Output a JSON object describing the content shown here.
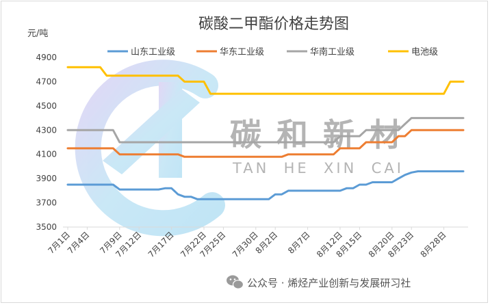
{
  "chart_data": {
    "type": "line",
    "title": "碳酸二甲酯价格走势图",
    "ylabel": "元/吨",
    "ylim": [
      3500,
      4900
    ],
    "yticks": [
      3500,
      3700,
      3900,
      4100,
      4300,
      4500,
      4700,
      4900
    ],
    "grid": false,
    "legend_position": "top",
    "x": [
      "7月1日",
      "7月2日",
      "7月3日",
      "7月4日",
      "7月5日",
      "7月6日",
      "7月7日",
      "7月8日",
      "7月9日",
      "7月10日",
      "7月11日",
      "7月12日",
      "7月13日",
      "7月14日",
      "7月15日",
      "7月16日",
      "7月17日",
      "7月18日",
      "7月19日",
      "7月20日",
      "7月21日",
      "7月22日",
      "7月23日",
      "7月24日",
      "7月25日",
      "7月26日",
      "7月27日",
      "7月28日",
      "7月29日",
      "7月30日",
      "7月31日",
      "8月1日",
      "8月2日",
      "8月3日",
      "8月4日",
      "8月5日",
      "8月6日",
      "8月7日",
      "8月8日",
      "8月9日",
      "8月10日",
      "8月11日",
      "8月12日",
      "8月13日",
      "8月14日",
      "8月15日",
      "8月16日",
      "8月17日",
      "8月18日",
      "8月19日",
      "8月20日",
      "8月21日",
      "8月22日",
      "8月23日",
      "8月24日",
      "8月25日",
      "8月26日",
      "8月27日",
      "8月28日",
      "8月29日",
      "8月30日",
      "8月31日"
    ],
    "xtick_labels": [
      "7月1日",
      "7月4日",
      "7月9日",
      "7月12日",
      "7月17日",
      "7月22日",
      "7月25日",
      "7月30日",
      "8月2日",
      "8月7日",
      "8月12日",
      "8月15日",
      "8月20日",
      "8月23日",
      "8月28日"
    ],
    "series": [
      {
        "name": "山东工业级",
        "color": "#5b9bd5",
        "values": [
          3850,
          3850,
          3850,
          3850,
          3850,
          3850,
          3850,
          3850,
          3810,
          3810,
          3810,
          3810,
          3810,
          3810,
          3810,
          3820,
          3820,
          3770,
          3750,
          3750,
          3730,
          3730,
          3730,
          3730,
          3730,
          3730,
          3730,
          3730,
          3730,
          3730,
          3730,
          3730,
          3770,
          3770,
          3800,
          3800,
          3800,
          3800,
          3800,
          3800,
          3800,
          3800,
          3800,
          3820,
          3820,
          3850,
          3850,
          3870,
          3870,
          3870,
          3870,
          3900,
          3930,
          3950,
          3960,
          3960,
          3960,
          3960,
          3960,
          3960,
          3960,
          3960
        ]
      },
      {
        "name": "华东工业级",
        "color": "#ed7d31",
        "values": [
          4150,
          4150,
          4150,
          4150,
          4150,
          4150,
          4150,
          4150,
          4100,
          4100,
          4100,
          4100,
          4100,
          4100,
          4100,
          4100,
          4100,
          4100,
          4080,
          4080,
          4080,
          4080,
          4080,
          4080,
          4080,
          4080,
          4080,
          4080,
          4080,
          4080,
          4080,
          4080,
          4080,
          4080,
          4100,
          4100,
          4100,
          4100,
          4100,
          4100,
          4100,
          4100,
          4150,
          4150,
          4150,
          4150,
          4200,
          4200,
          4200,
          4200,
          4200,
          4250,
          4250,
          4300,
          4300,
          4300,
          4300,
          4300,
          4300,
          4300,
          4300,
          4300
        ]
      },
      {
        "name": "华南工业级",
        "color": "#a5a5a5",
        "values": [
          4300,
          4300,
          4300,
          4300,
          4300,
          4300,
          4300,
          4300,
          4200,
          4200,
          4200,
          4200,
          4200,
          4200,
          4200,
          4200,
          4200,
          4200,
          4200,
          4200,
          4200,
          4200,
          4200,
          4200,
          4200,
          4200,
          4200,
          4200,
          4200,
          4200,
          4200,
          4200,
          4200,
          4200,
          4200,
          4200,
          4200,
          4200,
          4200,
          4200,
          4200,
          4200,
          4250,
          4250,
          4250,
          4250,
          4300,
          4300,
          4300,
          4300,
          4300,
          4300,
          4350,
          4400,
          4400,
          4400,
          4400,
          4400,
          4400,
          4400,
          4400,
          4400
        ]
      },
      {
        "name": "电池级",
        "color": "#ffc000",
        "values": [
          4820,
          4820,
          4820,
          4820,
          4820,
          4820,
          4750,
          4750,
          4750,
          4750,
          4750,
          4750,
          4750,
          4750,
          4750,
          4750,
          4750,
          4750,
          4700,
          4700,
          4700,
          4700,
          4600,
          4600,
          4600,
          4600,
          4600,
          4600,
          4600,
          4600,
          4600,
          4600,
          4600,
          4600,
          4600,
          4600,
          4600,
          4600,
          4600,
          4600,
          4600,
          4600,
          4600,
          4600,
          4600,
          4600,
          4600,
          4600,
          4600,
          4600,
          4600,
          4600,
          4600,
          4600,
          4600,
          4600,
          4600,
          4600,
          4600,
          4700,
          4700,
          4700
        ]
      }
    ]
  },
  "watermark": {
    "brand_cn": "碳和新材",
    "brand_en": "TAN  HE  XIN  CAI"
  },
  "footer": {
    "icon": "wechat-icon",
    "text": "公众号 · 烯烃产业创新与发展研习社"
  }
}
